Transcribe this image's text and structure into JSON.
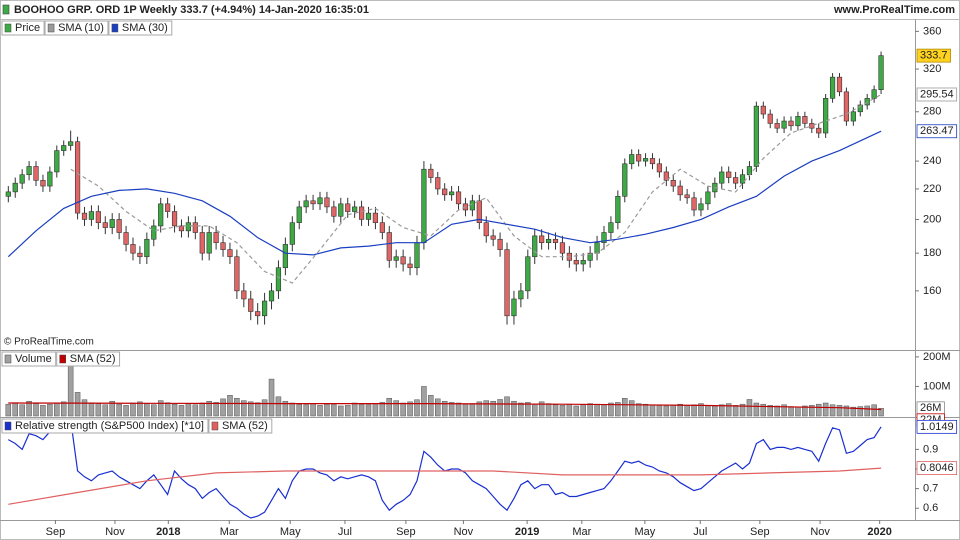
{
  "chart_data": [
    {
      "type": "candlestick",
      "title": "BOOHOO GRP. ORD 1P Weekly 333.7 (+4.94%) 14-Jan-2020 16:35:01",
      "source": "www.ProRealTime.com",
      "copyright": "© ProRealTime.com",
      "name": "Price",
      "up_color": "#3daa45",
      "down_color": "#e06666",
      "last_box_color": "#ffd21f",
      "log_scale": true,
      "grid": false,
      "ylim": [
        133,
        373
      ],
      "yticks": [
        160,
        180,
        200,
        220,
        240,
        280,
        320,
        360
      ],
      "xlim": [
        -1.2,
        130.9
      ],
      "x": [
        0,
        1,
        2,
        3,
        4,
        5,
        6,
        7,
        8,
        9,
        10,
        11,
        12,
        13,
        14,
        15,
        16,
        17,
        18,
        19,
        20,
        21,
        22,
        23,
        24,
        25,
        26,
        27,
        28,
        29,
        30,
        31,
        32,
        33,
        34,
        35,
        36,
        37,
        38,
        39,
        40,
        41,
        42,
        43,
        44,
        45,
        46,
        47,
        48,
        49,
        50,
        51,
        52,
        53,
        54,
        55,
        56,
        57,
        58,
        59,
        60,
        61,
        62,
        63,
        64,
        65,
        66,
        67,
        68,
        69,
        70,
        71,
        72,
        73,
        74,
        75,
        76,
        77,
        78,
        79,
        80,
        81,
        82,
        83,
        84,
        85,
        86,
        87,
        88,
        89,
        90,
        91,
        92,
        93,
        94,
        95,
        96,
        97,
        98,
        99,
        100,
        101,
        102,
        103,
        104,
        105,
        106,
        107,
        108,
        109,
        110,
        111,
        112,
        113,
        114,
        115,
        116,
        117,
        118,
        119,
        120,
        121,
        122,
        123,
        124,
        125,
        126
      ],
      "open": [
        215,
        218,
        224,
        230,
        236,
        226,
        222,
        232,
        248,
        252,
        255,
        204,
        200,
        205,
        198,
        195,
        200,
        192,
        185,
        180,
        178,
        188,
        196,
        210,
        205,
        196,
        193,
        198,
        192,
        180,
        192,
        186,
        182,
        178,
        160,
        156,
        150,
        148,
        155,
        160,
        172,
        185,
        198,
        208,
        212,
        210,
        214,
        208,
        202,
        210,
        205,
        208,
        200,
        204,
        198,
        192,
        176,
        178,
        174,
        172,
        186,
        234,
        228,
        220,
        216,
        218,
        210,
        206,
        212,
        198,
        190,
        188,
        182,
        148,
        156,
        160,
        178,
        190,
        186,
        188,
        186,
        180,
        176,
        174,
        176,
        180,
        186,
        192,
        198,
        215,
        238,
        245,
        240,
        242,
        238,
        232,
        226,
        222,
        216,
        214,
        206,
        210,
        218,
        224,
        232,
        228,
        224,
        230,
        236,
        285,
        278,
        270,
        266,
        272,
        268,
        276,
        270,
        266,
        262,
        292,
        312,
        298,
        272,
        280,
        286,
        292,
        300
      ],
      "high": [
        222,
        228,
        234,
        240,
        240,
        230,
        236,
        252,
        256,
        264,
        259,
        208,
        209,
        209,
        202,
        204,
        204,
        196,
        189,
        184,
        192,
        200,
        214,
        214,
        209,
        200,
        202,
        202,
        196,
        196,
        196,
        190,
        186,
        182,
        164,
        160,
        154,
        159,
        164,
        176,
        189,
        202,
        212,
        216,
        216,
        218,
        218,
        212,
        214,
        214,
        212,
        212,
        208,
        208,
        202,
        196,
        182,
        182,
        178,
        190,
        240,
        238,
        232,
        224,
        222,
        222,
        214,
        216,
        216,
        202,
        194,
        192,
        186,
        160,
        164,
        182,
        194,
        194,
        192,
        192,
        190,
        184,
        180,
        180,
        184,
        190,
        196,
        202,
        219,
        242,
        249,
        249,
        246,
        246,
        242,
        236,
        230,
        226,
        220,
        218,
        214,
        222,
        228,
        236,
        236,
        232,
        234,
        240,
        289,
        289,
        282,
        274,
        276,
        276,
        280,
        280,
        274,
        270,
        296,
        316,
        316,
        302,
        284,
        290,
        296,
        304,
        338
      ],
      "low": [
        211,
        214,
        220,
        226,
        222,
        218,
        218,
        228,
        244,
        248,
        200,
        196,
        196,
        194,
        191,
        191,
        188,
        181,
        176,
        174,
        174,
        184,
        192,
        201,
        192,
        189,
        189,
        188,
        176,
        176,
        182,
        178,
        174,
        156,
        152,
        146,
        144,
        144,
        151,
        156,
        168,
        181,
        194,
        204,
        206,
        206,
        204,
        198,
        198,
        201,
        201,
        196,
        196,
        194,
        188,
        172,
        172,
        170,
        168,
        168,
        182,
        224,
        216,
        212,
        212,
        206,
        202,
        202,
        194,
        186,
        184,
        178,
        144,
        144,
        152,
        156,
        174,
        182,
        182,
        182,
        176,
        172,
        170,
        170,
        172,
        176,
        182,
        188,
        194,
        211,
        234,
        236,
        236,
        234,
        228,
        222,
        218,
        212,
        210,
        202,
        202,
        206,
        214,
        220,
        224,
        220,
        220,
        226,
        232,
        274,
        266,
        262,
        262,
        264,
        264,
        266,
        262,
        258,
        258,
        288,
        294,
        268,
        268,
        276,
        282,
        288,
        296
      ],
      "close": [
        218,
        224,
        230,
        236,
        226,
        222,
        232,
        248,
        252,
        255,
        204,
        200,
        205,
        198,
        195,
        200,
        192,
        185,
        180,
        178,
        188,
        196,
        210,
        205,
        196,
        193,
        198,
        192,
        180,
        192,
        186,
        182,
        178,
        160,
        156,
        150,
        148,
        155,
        160,
        172,
        185,
        198,
        208,
        212,
        210,
        214,
        208,
        202,
        210,
        205,
        208,
        200,
        204,
        198,
        192,
        176,
        178,
        174,
        172,
        186,
        234,
        228,
        220,
        216,
        218,
        210,
        206,
        212,
        198,
        190,
        188,
        182,
        148,
        156,
        160,
        178,
        190,
        186,
        188,
        186,
        180,
        176,
        174,
        176,
        180,
        186,
        192,
        198,
        215,
        238,
        245,
        240,
        242,
        238,
        232,
        226,
        222,
        216,
        214,
        206,
        210,
        218,
        224,
        232,
        228,
        224,
        230,
        236,
        285,
        278,
        270,
        266,
        272,
        268,
        276,
        270,
        266,
        262,
        292,
        312,
        298,
        272,
        280,
        286,
        292,
        300,
        333.7
      ],
      "series": [
        {
          "name": "SMA (10)",
          "color": "#9a9a9a",
          "dashed": true,
          "x": [
            9,
            13,
            17,
            21,
            25,
            29,
            33,
            37,
            41,
            45,
            49,
            53,
            57,
            61,
            65,
            69,
            73,
            77,
            81,
            85,
            89,
            93,
            97,
            101,
            105,
            109,
            113,
            117,
            121,
            126
          ],
          "values": [
            234,
            222,
            205,
            193,
            196,
            196,
            186,
            170,
            164,
            182,
            203,
            207,
            195,
            190,
            206,
            214,
            190,
            178,
            178,
            180,
            192,
            218,
            234,
            222,
            218,
            242,
            262,
            270,
            278,
            295.54
          ]
        },
        {
          "name": "SMA (30)",
          "color": "#1a3fc0",
          "dashed": false,
          "x": [
            0,
            4,
            8,
            12,
            16,
            20,
            24,
            28,
            32,
            36,
            40,
            44,
            48,
            52,
            56,
            60,
            64,
            68,
            72,
            76,
            80,
            84,
            88,
            92,
            96,
            100,
            104,
            108,
            112,
            116,
            120,
            126
          ],
          "values": [
            178,
            193,
            207,
            215,
            219,
            220,
            217,
            212,
            202,
            189,
            180,
            179,
            183,
            184,
            186,
            186,
            197,
            200,
            197,
            194,
            189,
            186,
            188,
            191,
            195,
            200,
            208,
            215,
            229,
            240,
            248,
            263.47
          ]
        }
      ]
    },
    {
      "type": "bar",
      "name": "Volume",
      "color": "#a0a0a0",
      "last_label": "26M",
      "ylim": [
        0,
        220
      ],
      "yticks": [
        {
          "value": 100,
          "label": "100M"
        },
        {
          "value": 200,
          "label": "200M"
        }
      ],
      "xlim": [
        -1.2,
        130.9
      ],
      "values": [
        40,
        45,
        38,
        50,
        42,
        36,
        40,
        44,
        48,
        200,
        80,
        55,
        45,
        42,
        38,
        50,
        40,
        36,
        44,
        48,
        42,
        38,
        52,
        45,
        40,
        36,
        42,
        38,
        44,
        50,
        46,
        58,
        70,
        60,
        52,
        48,
        45,
        55,
        125,
        65,
        50,
        44,
        40,
        38,
        42,
        36,
        40,
        38,
        34,
        36,
        44,
        40,
        38,
        42,
        46,
        60,
        52,
        44,
        48,
        55,
        100,
        70,
        58,
        50,
        46,
        44,
        40,
        42,
        48,
        52,
        50,
        56,
        65,
        50,
        44,
        46,
        40,
        48,
        42,
        38,
        36,
        40,
        34,
        38,
        42,
        40,
        38,
        44,
        46,
        60,
        52,
        42,
        40,
        38,
        36,
        34,
        38,
        40,
        36,
        38,
        42,
        36,
        34,
        38,
        42,
        36,
        40,
        56,
        44,
        40,
        36,
        34,
        38,
        32,
        30,
        34,
        36,
        40,
        44,
        38,
        36,
        34,
        30,
        32,
        34,
        38,
        26
      ],
      "series": [
        {
          "name": "SMA (52)",
          "color": "#c00000",
          "last_label": "22M",
          "x": [
            0,
            20,
            40,
            60,
            80,
            100,
            120,
            126
          ],
          "values": [
            44,
            43,
            42,
            42,
            40,
            36,
            28,
            22
          ]
        }
      ]
    },
    {
      "type": "line",
      "ylim": [
        0.54,
        1.06
      ],
      "yticks": [
        0.6,
        0.7,
        0.8,
        0.9
      ],
      "xlim": [
        -1.2,
        130.9
      ],
      "xticks": [
        {
          "value": 6.8,
          "label": "Sep"
        },
        {
          "value": 15.4,
          "label": "Nov"
        },
        {
          "value": 23.1,
          "label": "2018"
        },
        {
          "value": 31.9,
          "label": "Mar"
        },
        {
          "value": 40.7,
          "label": "May"
        },
        {
          "value": 48.6,
          "label": "Jul"
        },
        {
          "value": 57.4,
          "label": "Sep"
        },
        {
          "value": 65.7,
          "label": "Nov"
        },
        {
          "value": 74.9,
          "label": "2019"
        },
        {
          "value": 82.8,
          "label": "Mar"
        },
        {
          "value": 91.9,
          "label": "May"
        },
        {
          "value": 99.9,
          "label": "Jul"
        },
        {
          "value": 108.5,
          "label": "Sep"
        },
        {
          "value": 117.2,
          "label": "Nov"
        },
        {
          "value": 125.8,
          "label": "2020"
        }
      ],
      "series": [
        {
          "name": "Relative strength (S&P500 Index) [*10]",
          "color": "#1a2fd0",
          "values": [
            0.95,
            0.93,
            0.9,
            0.98,
            0.97,
            0.95,
            0.99,
            1.03,
            1.02,
            1.05,
            0.79,
            0.76,
            0.74,
            0.77,
            0.78,
            0.79,
            0.76,
            0.74,
            0.72,
            0.7,
            0.74,
            0.77,
            0.72,
            0.67,
            0.79,
            0.75,
            0.72,
            0.7,
            0.65,
            0.68,
            0.7,
            0.66,
            0.62,
            0.6,
            0.57,
            0.55,
            0.56,
            0.58,
            0.64,
            0.7,
            0.65,
            0.74,
            0.79,
            0.8,
            0.8,
            0.78,
            0.77,
            0.74,
            0.76,
            0.75,
            0.76,
            0.77,
            0.76,
            0.74,
            0.64,
            0.59,
            0.62,
            0.64,
            0.67,
            0.74,
            0.89,
            0.86,
            0.82,
            0.79,
            0.8,
            0.8,
            0.78,
            0.74,
            0.72,
            0.7,
            0.66,
            0.62,
            0.59,
            0.65,
            0.72,
            0.74,
            0.7,
            0.72,
            0.72,
            0.67,
            0.68,
            0.66,
            0.66,
            0.67,
            0.68,
            0.69,
            0.7,
            0.74,
            0.79,
            0.84,
            0.83,
            0.84,
            0.82,
            0.81,
            0.79,
            0.78,
            0.76,
            0.73,
            0.71,
            0.69,
            0.7,
            0.73,
            0.76,
            0.79,
            0.81,
            0.83,
            0.8,
            0.83,
            0.93,
            0.95,
            0.9,
            0.91,
            0.91,
            0.9,
            0.91,
            0.9,
            0.89,
            0.84,
            0.93,
            1.01,
            1.0,
            0.88,
            0.89,
            0.92,
            0.95,
            0.96,
            1.0149
          ]
        },
        {
          "name": "SMA (52)",
          "color": "#e06060",
          "x": [
            0,
            10,
            20,
            30,
            40,
            50,
            60,
            70,
            80,
            90,
            100,
            110,
            120,
            126
          ],
          "values": [
            0.62,
            0.68,
            0.74,
            0.78,
            0.79,
            0.79,
            0.79,
            0.79,
            0.77,
            0.77,
            0.77,
            0.78,
            0.79,
            0.8046
          ]
        }
      ]
    }
  ]
}
